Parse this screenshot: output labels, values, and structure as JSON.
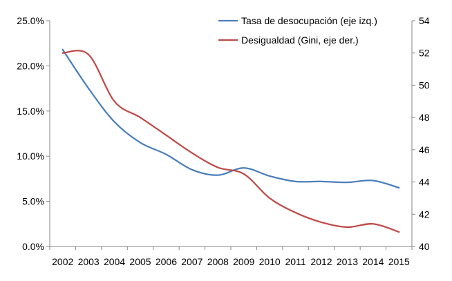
{
  "chart_data": {
    "type": "line",
    "categories": [
      "2002",
      "2003",
      "2004",
      "2005",
      "2006",
      "2007",
      "2008",
      "2009",
      "2010",
      "2011",
      "2012",
      "2013",
      "2014",
      "2015"
    ],
    "y_left": {
      "ticks": [
        "0.0%",
        "5.0%",
        "10.0%",
        "15.0%",
        "20.0%",
        "25.0%"
      ],
      "ylim": [
        0,
        25
      ]
    },
    "y_right": {
      "ticks": [
        "40",
        "42",
        "44",
        "46",
        "48",
        "50",
        "52",
        "54"
      ],
      "ylim": [
        40,
        54
      ]
    },
    "grid": false,
    "legend_position": "top-right",
    "series": [
      {
        "name": "Tasa de desocupación (eje izq.)",
        "axis": "left",
        "color": "#4a7ebb",
        "values": [
          21.8,
          17.5,
          13.8,
          11.5,
          10.2,
          8.5,
          7.9,
          8.7,
          7.8,
          7.2,
          7.2,
          7.1,
          7.3,
          6.5
        ]
      },
      {
        "name": "Desigualdad (Gini, eje der.)",
        "axis": "right",
        "color": "#be4b48",
        "values": [
          52.0,
          51.9,
          49.0,
          48.0,
          46.9,
          45.8,
          44.9,
          44.5,
          43.0,
          42.1,
          41.5,
          41.2,
          41.4,
          40.9
        ]
      }
    ]
  }
}
